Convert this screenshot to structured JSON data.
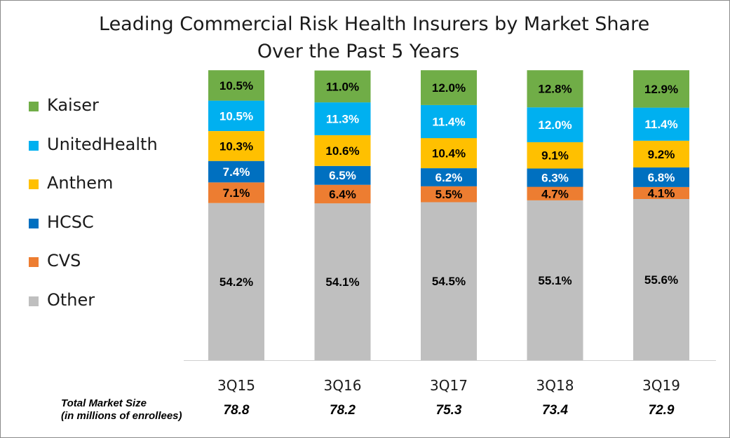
{
  "chart_data": {
    "type": "bar",
    "stacked": true,
    "title": [
      "Leading Commercial Risk Health Insurers by Market Share",
      "Over the Past 5 Years"
    ],
    "xlabel": "",
    "ylabel": "",
    "grid": false,
    "legend_position": "left",
    "categories": [
      "3Q15",
      "3Q16",
      "3Q17",
      "3Q18",
      "3Q19"
    ],
    "series": [
      {
        "name": "Other",
        "color": "#bfbfbf",
        "values": [
          54.2,
          54.1,
          54.5,
          55.1,
          55.6
        ],
        "labels": [
          "54.2%",
          "54.1%",
          "54.5%",
          "55.1%",
          "55.6%"
        ]
      },
      {
        "name": "CVS",
        "color": "#ed7d31",
        "values": [
          7.1,
          6.4,
          5.5,
          4.7,
          4.1
        ],
        "labels": [
          "7.1%",
          "6.4%",
          "5.5%",
          "4.7%",
          "4.1%"
        ]
      },
      {
        "name": "HCSC",
        "color": "#0070c0",
        "values": [
          7.4,
          6.5,
          6.2,
          6.3,
          6.8
        ],
        "labels": [
          "7.4%",
          "6.5%",
          "6.2%",
          "6.3%",
          "6.8%"
        ]
      },
      {
        "name": "Anthem",
        "color": "#ffc000",
        "values": [
          10.3,
          10.6,
          10.4,
          9.1,
          9.2
        ],
        "labels": [
          "10.3%",
          "10.6%",
          "10.4%",
          "9.1%",
          "9.2%"
        ]
      },
      {
        "name": "UnitedHealth",
        "color": "#00b0f0",
        "values": [
          10.5,
          11.3,
          11.4,
          12.0,
          11.4
        ],
        "labels": [
          "10.5%",
          "11.3%",
          "11.4%",
          "12.0%",
          "11.4%"
        ]
      },
      {
        "name": "Kaiser",
        "color": "#70ad47",
        "values": [
          10.5,
          11.0,
          12.0,
          12.8,
          12.9
        ],
        "labels": [
          "10.5%",
          "11.0%",
          "12.0%",
          "12.8%",
          "12.9%"
        ]
      }
    ],
    "legend_order": [
      "Kaiser",
      "UnitedHealth",
      "Anthem",
      "HCSC",
      "CVS",
      "Other"
    ],
    "market_size": {
      "label": [
        "Total Market Size",
        "(in millions  of enrollees)"
      ],
      "values": [
        "78.8",
        "78.2",
        "75.3",
        "73.4",
        "72.9"
      ]
    }
  }
}
